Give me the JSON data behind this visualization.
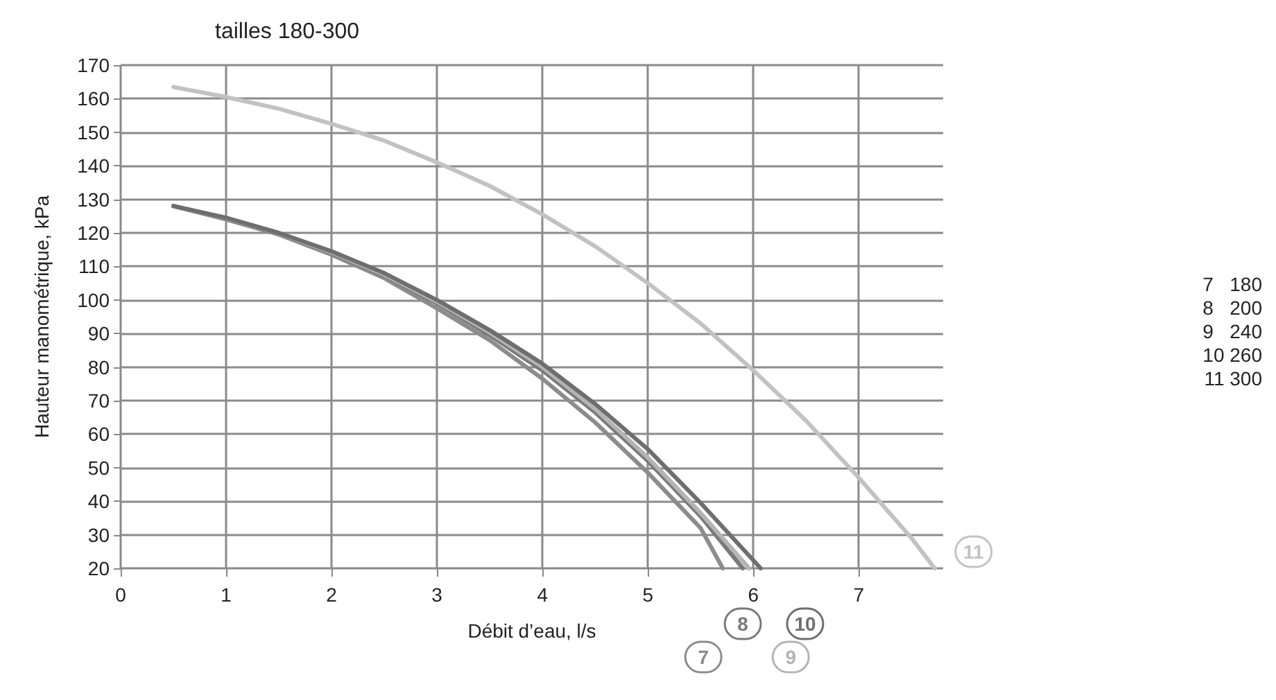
{
  "chart_data": {
    "type": "line",
    "title": "tailles 180-300",
    "xlabel": "Débit d’eau, l/s",
    "ylabel": "Hauteur manométrique, kPa",
    "xlim": [
      0,
      7.8
    ],
    "xticks": [
      0,
      1,
      2,
      3,
      4,
      5,
      6,
      7
    ],
    "ylim": [
      20,
      170
    ],
    "yticks": [
      20,
      30,
      40,
      50,
      60,
      70,
      80,
      90,
      100,
      110,
      120,
      130,
      140,
      150,
      160,
      170
    ],
    "grid": true,
    "legend": "bottom",
    "marker": "none",
    "line_style": "solid",
    "series": [
      {
        "name": "7",
        "color": "#8c8c8c",
        "x": [
          0.5,
          1,
          1.5,
          2,
          2.5,
          3,
          3.5,
          4,
          4.5,
          5,
          5.5,
          5.71
        ],
        "values": [
          128,
          124,
          119.5,
          113.5,
          106.5,
          97.5,
          88,
          76.5,
          63.5,
          48.5,
          32,
          20
        ]
      },
      {
        "name": "8",
        "color": "#7a7a7a",
        "x": [
          0.5,
          1,
          1.5,
          2,
          2.5,
          3,
          3.5,
          4,
          4.5,
          5,
          5.5,
          5.9
        ],
        "values": [
          128,
          124.3,
          119.8,
          114,
          107.3,
          99,
          89.5,
          79,
          66.5,
          52,
          35.5,
          20
        ]
      },
      {
        "name": "9",
        "color": "#b4b4b4",
        "x": [
          0.5,
          1,
          1.5,
          2,
          2.5,
          3,
          3.5,
          4,
          4.5,
          5,
          5.5,
          5.96
        ],
        "values": [
          128,
          124.4,
          119.9,
          114.2,
          107.6,
          99.5,
          90.3,
          80,
          67.5,
          53,
          36.5,
          20
        ]
      },
      {
        "name": "10",
        "color": "#6e6e6e",
        "x": [
          0.5,
          1,
          1.5,
          2,
          2.5,
          3,
          3.5,
          4,
          4.5,
          5,
          5.5,
          6.07
        ],
        "values": [
          128,
          124.5,
          120,
          114.5,
          108,
          100,
          91,
          81,
          69,
          55.5,
          39.5,
          20
        ]
      },
      {
        "name": "11",
        "color": "#c2c2c2",
        "x": [
          0.5,
          1,
          1.5,
          2,
          2.5,
          3,
          3.5,
          4,
          4.5,
          5,
          5.5,
          6,
          6.5,
          7,
          7.5,
          7.72
        ],
        "values": [
          163.5,
          160.5,
          157,
          152.5,
          147.5,
          141,
          134,
          125.5,
          116,
          105,
          93,
          79,
          64,
          47,
          29,
          20
        ]
      }
    ],
    "annotations": [
      "7   180",
      "8   200",
      "9   240",
      "10 260",
      "11 300"
    ]
  }
}
